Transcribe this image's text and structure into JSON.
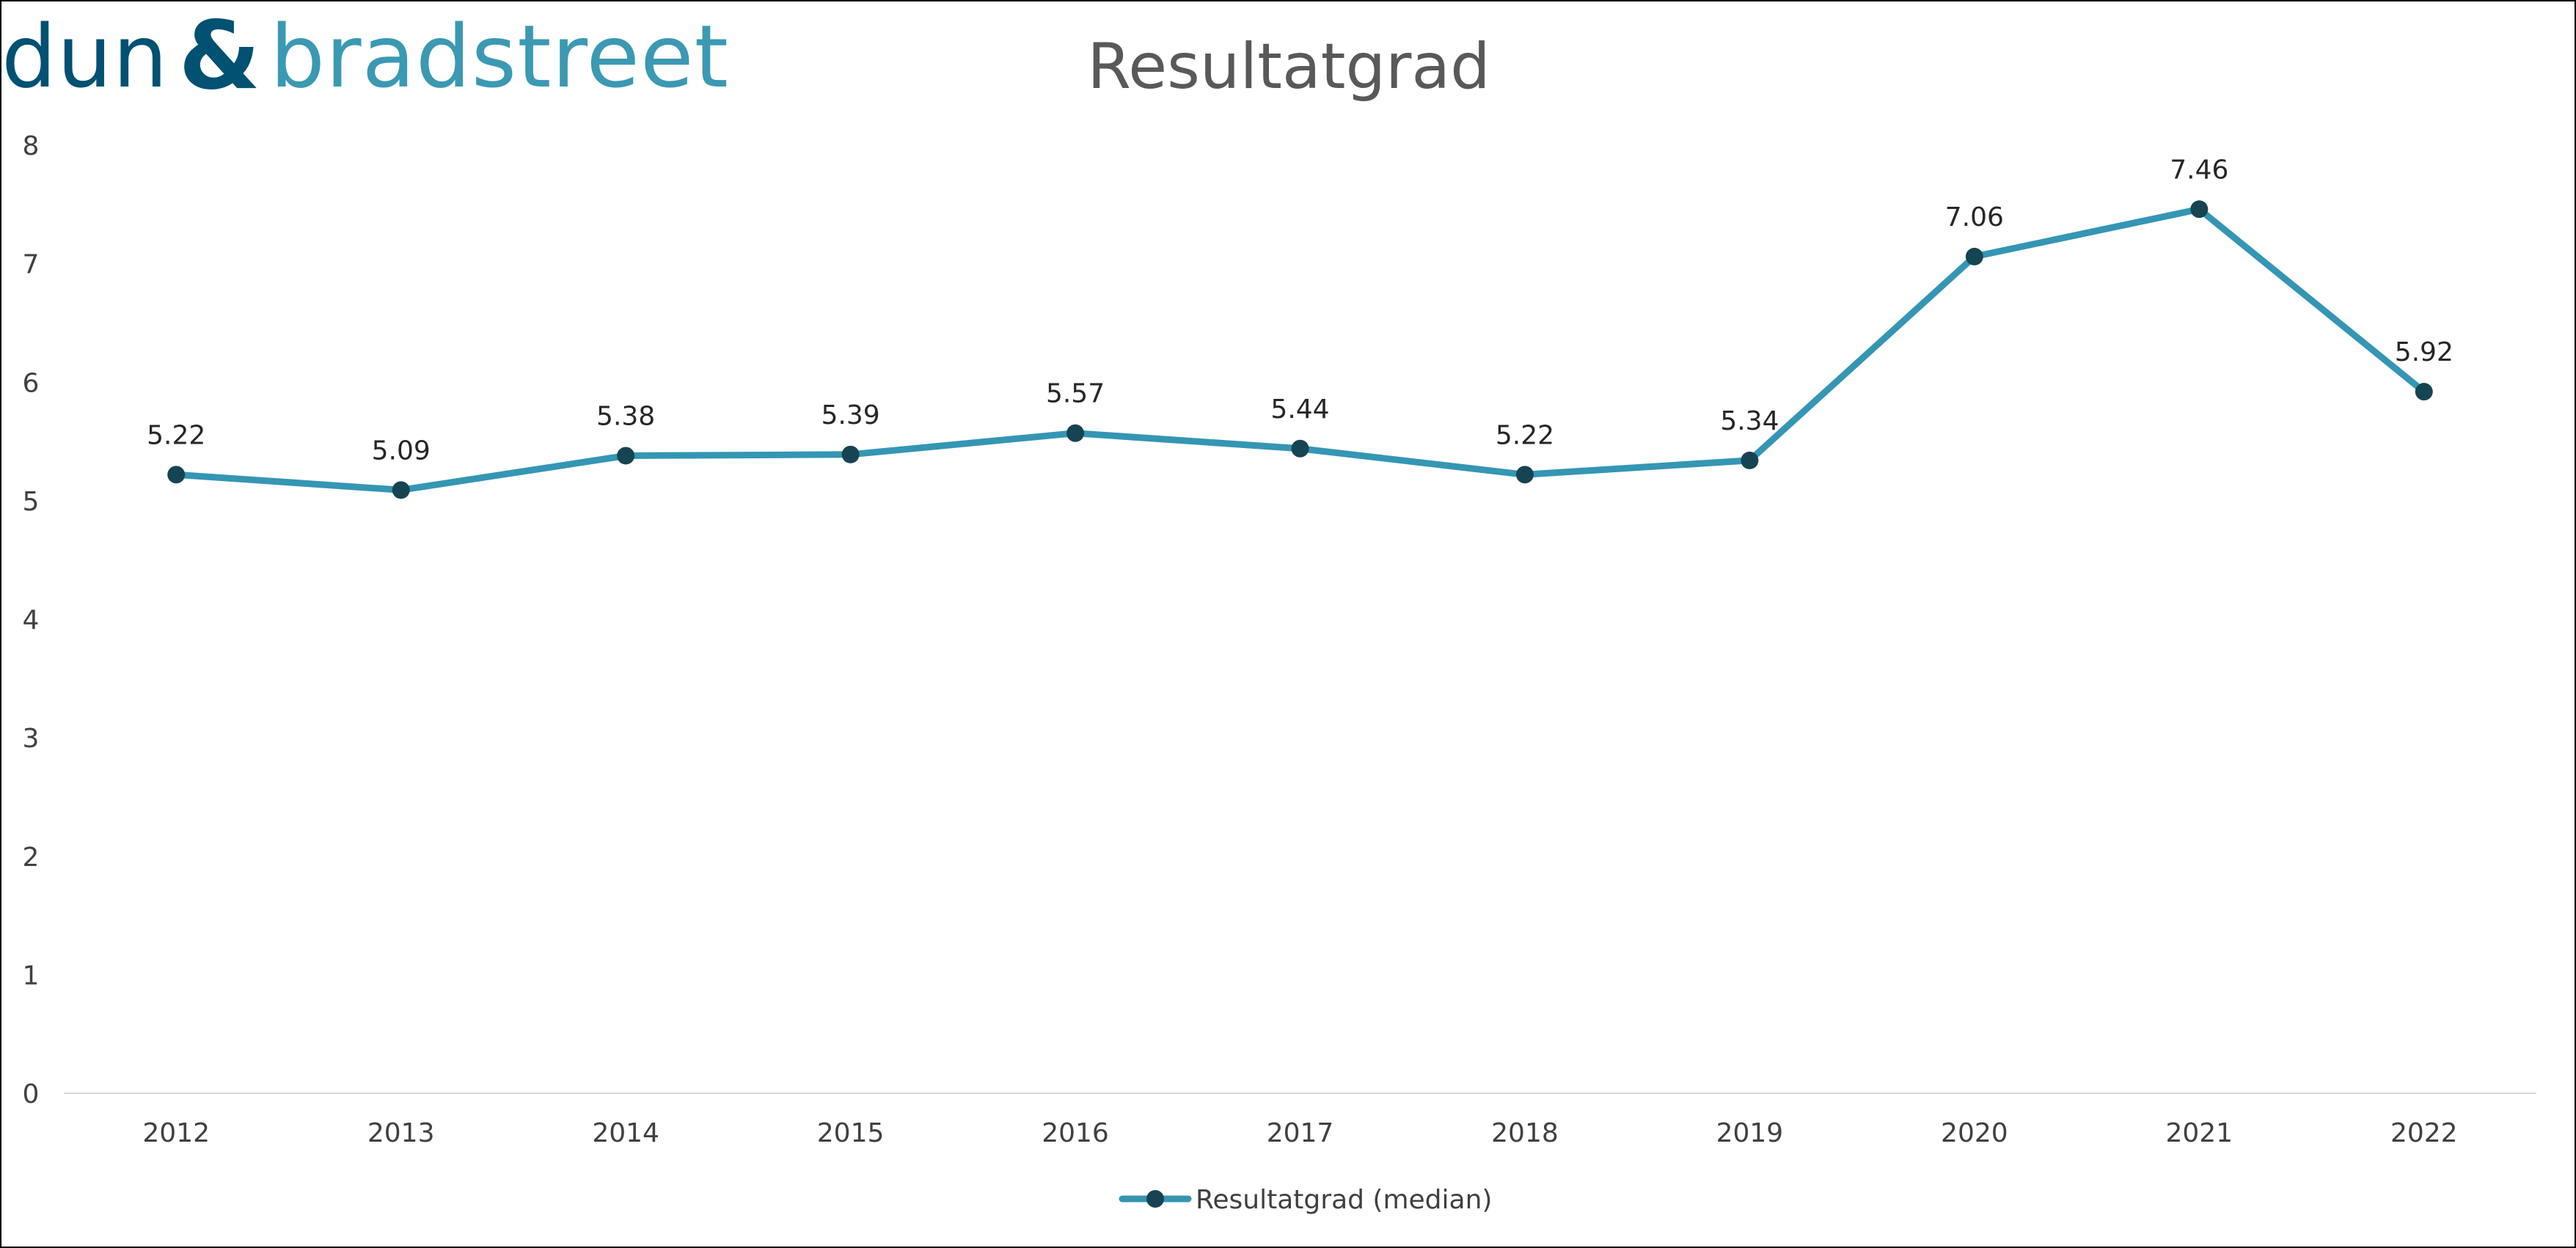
{
  "logo": {
    "part1": "dun",
    "amp": "&",
    "part2": "bradstreet",
    "primary_color": "#005172",
    "secondary_color": "#3b99b3"
  },
  "chart_data": {
    "type": "line",
    "title": "Resultatgrad",
    "xlabel": "",
    "ylabel": "",
    "categories": [
      "2012",
      "2013",
      "2014",
      "2015",
      "2016",
      "2017",
      "2018",
      "2019",
      "2020",
      "2021",
      "2022"
    ],
    "series": [
      {
        "name": "Resultatgrad (median)",
        "values": [
          5.22,
          5.09,
          5.38,
          5.39,
          5.57,
          5.44,
          5.22,
          5.34,
          7.06,
          7.46,
          5.92
        ],
        "line_color": "#3496b4",
        "marker_color": "#164452"
      }
    ],
    "ylim": [
      0,
      8
    ],
    "yticks": [
      "0",
      "1",
      "2",
      "3",
      "4",
      "5",
      "6",
      "7",
      "8"
    ],
    "data_labels": [
      "5.22",
      "5.09",
      "5.38",
      "5.39",
      "5.57",
      "5.44",
      "5.22",
      "5.34",
      "7.06",
      "7.46",
      "5.92"
    ],
    "grid": false,
    "legend_position": "bottom"
  }
}
